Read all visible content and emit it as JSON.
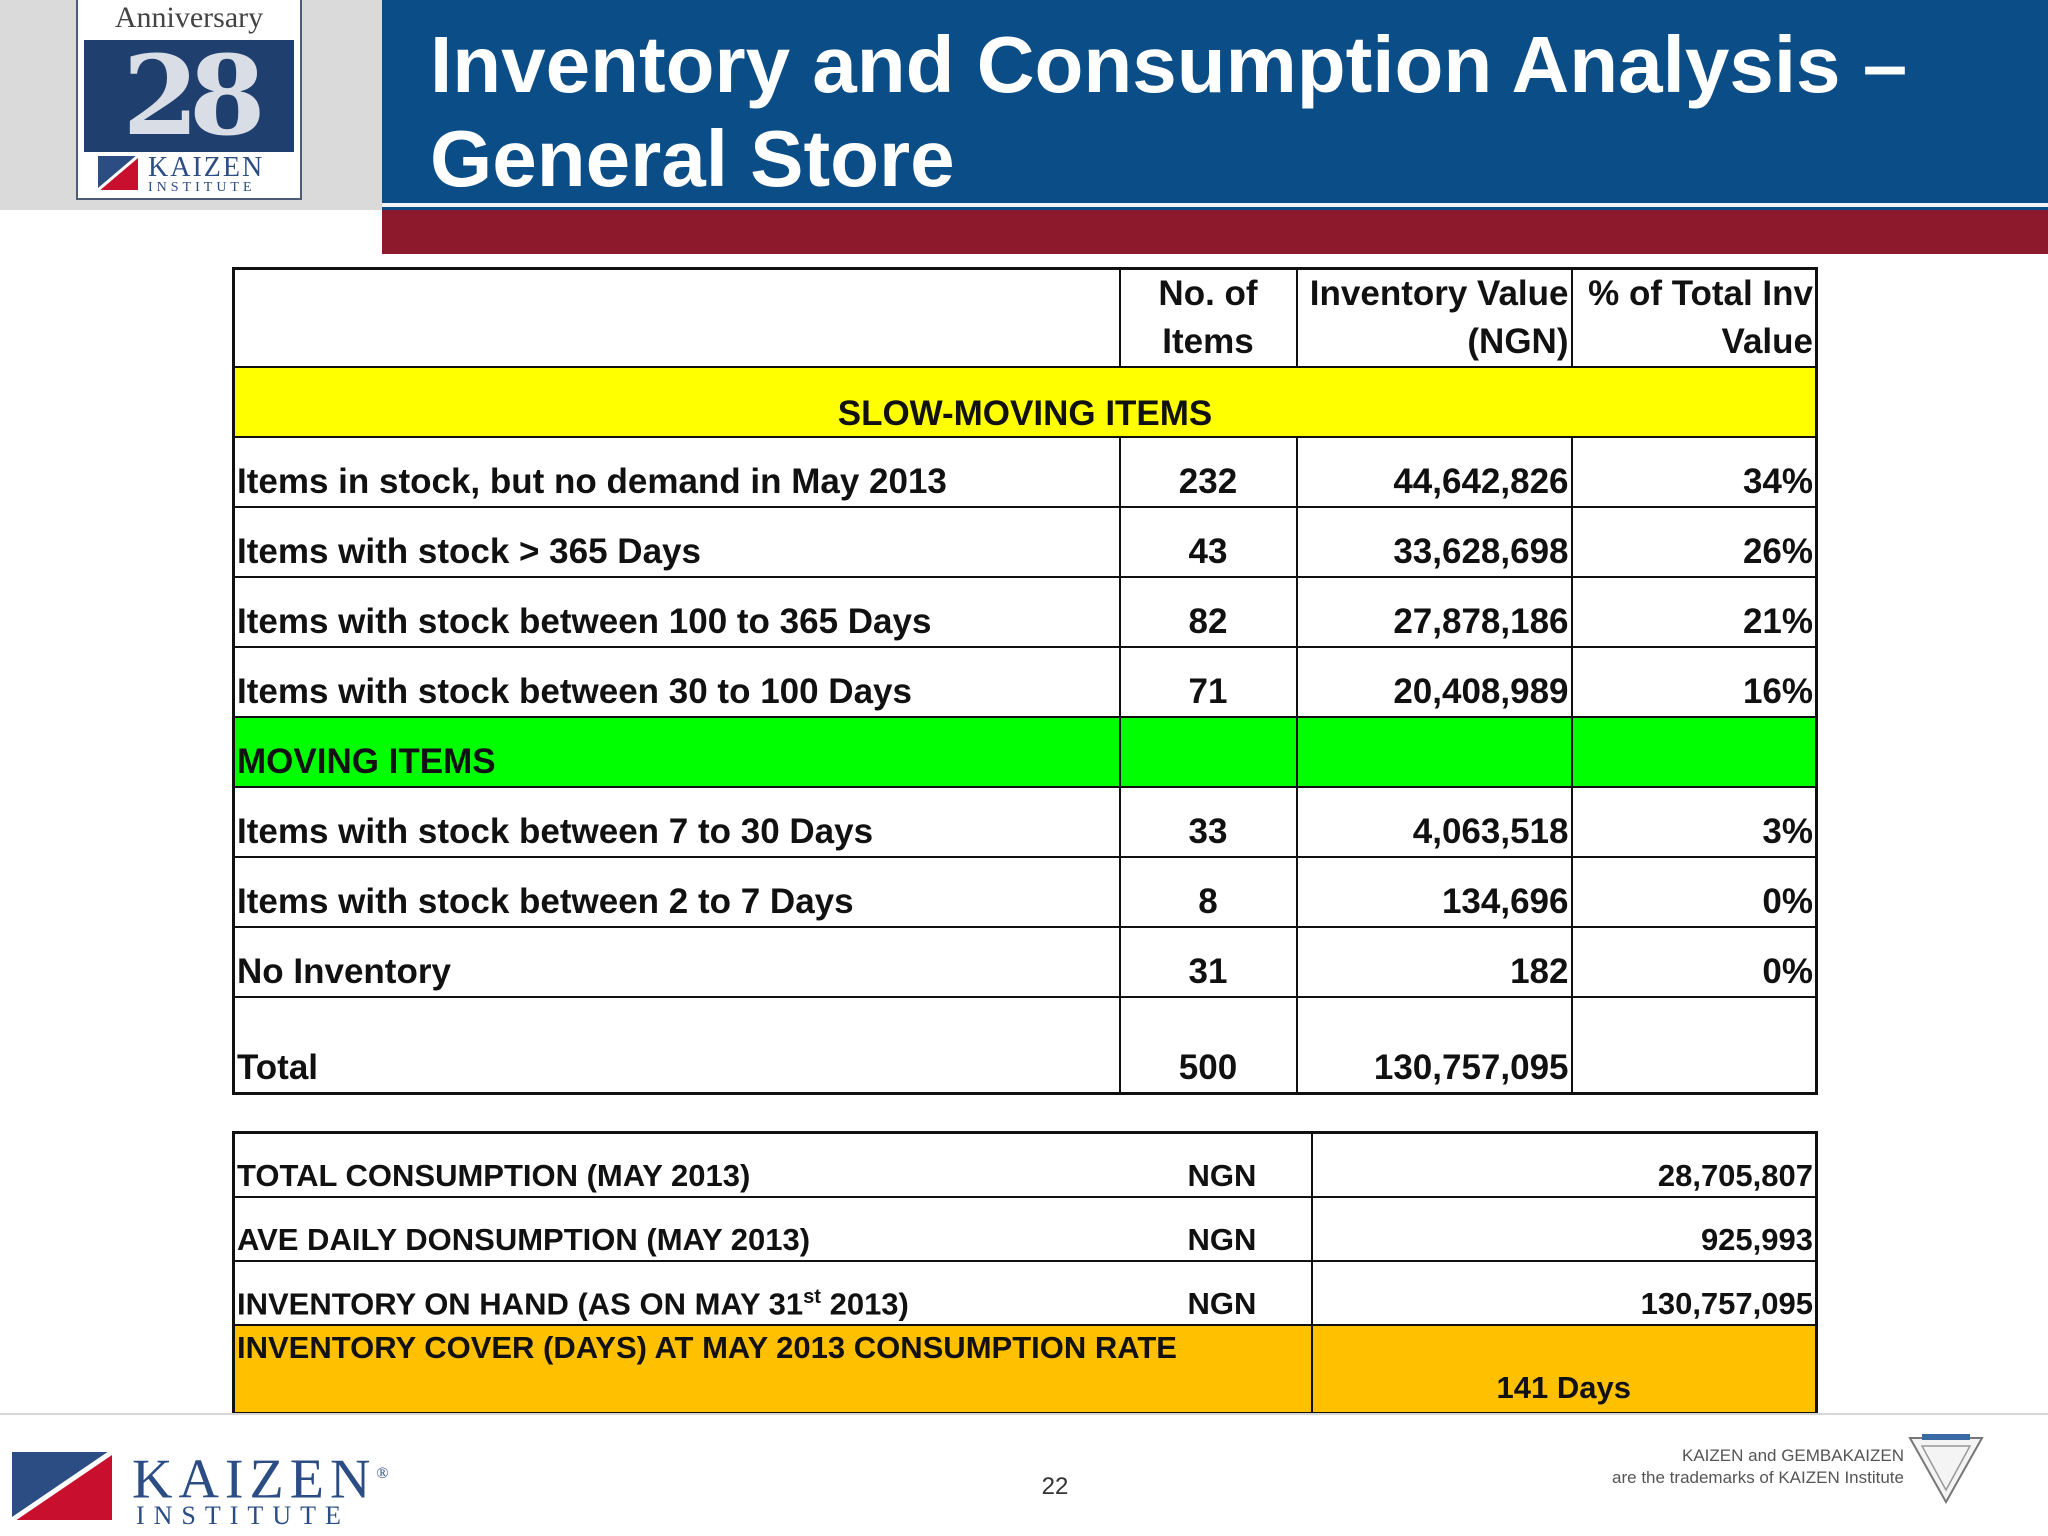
{
  "header": {
    "title_line1": "Inventory and Consumption Analysis –",
    "title_line2": "General Store",
    "badge_top": "Anniversary",
    "badge_number": "28",
    "badge_brand": "KAIZEN",
    "badge_sub": "INSTITUTE"
  },
  "main_table": {
    "headers": {
      "col2_line1": "No. of",
      "col2_line2": "Items",
      "col3_line1": "Inventory Value",
      "col3_line2": "(NGN)",
      "col4_line1": "% of Total Inv",
      "col4_line2": "Value"
    },
    "slow_section": "SLOW-MOVING ITEMS",
    "slow_rows": [
      {
        "label": "Items in stock, but no demand in May 2013",
        "items": "232",
        "value": "44,642,826",
        "pct": "34%"
      },
      {
        "label": "Items with stock > 365 Days",
        "items": "43",
        "value": "33,628,698",
        "pct": "26%"
      },
      {
        "label": "Items with stock between 100 to 365 Days",
        "items": "82",
        "value": "27,878,186",
        "pct": "21%"
      },
      {
        "label": "Items with stock between 30 to 100 Days",
        "items": "71",
        "value": "20,408,989",
        "pct": "16%"
      }
    ],
    "moving_section": "MOVING ITEMS",
    "moving_rows": [
      {
        "label": "Items with stock between 7 to 30 Days",
        "items": "33",
        "value": "4,063,518",
        "pct": "3%"
      },
      {
        "label": "Items with stock between 2 to 7 Days",
        "items": "8",
        "value": "134,696",
        "pct": "0%"
      },
      {
        "label": "No Inventory",
        "items": "31",
        "value": "182",
        "pct": "0%"
      }
    ],
    "total": {
      "label": "Total",
      "items": "500",
      "value": "130,757,095"
    }
  },
  "summary": {
    "rows": [
      {
        "label": "TOTAL CONSUMPTION (MAY  2013)",
        "unit": "NGN",
        "value": "28,705,807"
      },
      {
        "label": "AVE DAILY DONSUMPTION (MAY 2013)",
        "unit": "NGN",
        "value": "925,993"
      }
    ],
    "inventory_label_pre": "INVENTORY ON HAND (AS ON MAY 31",
    "inventory_label_sup": "st",
    "inventory_label_post": " 2013)",
    "inventory_unit": "NGN",
    "inventory_value": "130,757,095",
    "cover_label": "INVENTORY COVER  (DAYS) AT MAY 2013 CONSUMPTION RATE",
    "cover_value": "141 Days"
  },
  "footer": {
    "brand": "KAIZEN",
    "brand_mark": "®",
    "brand_sub": "INSTITUTE",
    "page_number": "22",
    "trademark_line1": "KAIZEN and GEMBAKAIZEN",
    "trademark_line2": "are the trademarks of KAIZEN Institute"
  },
  "colors": {
    "header_blue": "#0b4d86",
    "header_red": "#8c1a2c",
    "slow_section_bg": "#ffff00",
    "moving_section_bg": "#00ff00",
    "cover_bg": "#ffc000",
    "brand_blue": "#2b4d83"
  }
}
